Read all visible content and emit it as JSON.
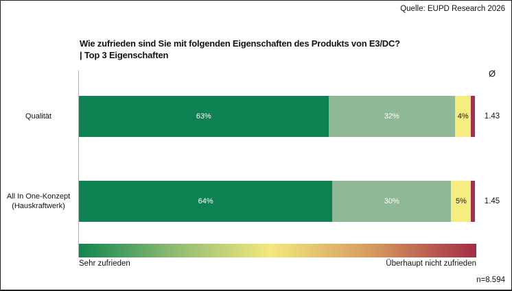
{
  "source": {
    "text": "Quelle: EUPD Research 2026"
  },
  "title": {
    "line1": "Wie zufrieden sind Sie mit folgenden Eigenschaften des Produkts von E3/DC?",
    "line2": "| Top 3 Eigenschaften"
  },
  "footer": {
    "sample_size": "n=8.594"
  },
  "chart_data": {
    "type": "bar",
    "orientation": "horizontal",
    "stacked": true,
    "grid": false,
    "title": "Wie zufrieden sind Sie mit folgenden Eigenschaften des Produkts von E3/DC? | Top 3 Eigenschaften",
    "average_symbol": "Ø",
    "xlim": [
      0,
      100
    ],
    "categories": [
      "Qualität",
      "All In One-Konzept (Hauskraftwerk)"
    ],
    "rows": [
      {
        "label_lines": [
          "Qualität"
        ],
        "segments": [
          {
            "value": 63,
            "label": "63%"
          },
          {
            "value": 32,
            "label": "32%"
          },
          {
            "value": 4,
            "label": "4%"
          },
          {
            "value": 1,
            "label": ""
          }
        ],
        "average": "1.43"
      },
      {
        "label_lines": [
          "All In One-Konzept",
          "(Hauskraftwerk)"
        ],
        "segments": [
          {
            "value": 64,
            "label": "64%"
          },
          {
            "value": 30,
            "label": "30%"
          },
          {
            "value": 5,
            "label": "5%"
          },
          {
            "value": 1,
            "label": ""
          }
        ],
        "average": "1.45"
      }
    ],
    "averages": [
      1.43,
      1.45
    ],
    "palette": [
      {
        "fill": "#0e8152",
        "label_color": "#ffffff"
      },
      {
        "fill": "#8fb996",
        "label_color": "#ffffff"
      },
      {
        "fill": "#f6ec7f",
        "label_color": "#1a1a1a"
      },
      {
        "fill": "#a43050",
        "label_color": "#ffffff"
      }
    ],
    "legend": {
      "type": "gradient-scale",
      "left_label": "Sehr zufrieden",
      "right_label": "Überhaupt nicht zufrieden",
      "gradient_colors": [
        "#11854f",
        "#8fbb73",
        "#f2e87d",
        "#d6995f",
        "#a32c46"
      ],
      "gradient_stops": [
        0,
        24,
        48,
        74,
        100
      ]
    }
  }
}
